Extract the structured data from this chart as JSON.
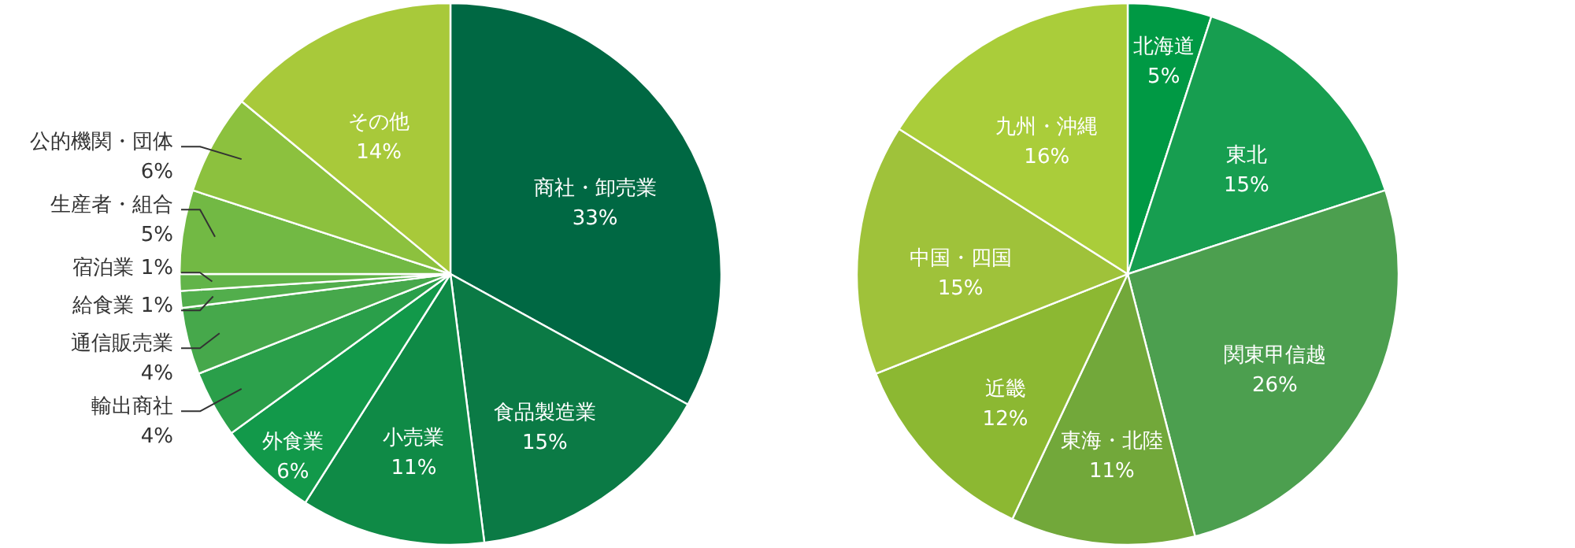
{
  "chart_data": [
    {
      "type": "pie",
      "categories": [
        "商社・卸売業",
        "食品製造業",
        "小売業",
        "外食業",
        "輸出商社",
        "通信販売業",
        "給食業",
        "宿泊業",
        "生産者・組合",
        "公的機関・団体",
        "その他"
      ],
      "values": [
        33,
        15,
        11,
        6,
        4,
        4,
        1,
        1,
        5,
        6,
        14
      ],
      "value_labels": [
        "33%",
        "15%",
        "11%",
        "6%",
        "4%",
        "4%",
        "1%",
        "1%",
        "5%",
        "6%",
        "14%"
      ],
      "colors": [
        "#006843",
        "#0b7a45",
        "#0f8a46",
        "#12994a",
        "#2a9f4a",
        "#46a84b",
        "#52ae4c",
        "#62b449",
        "#72b944",
        "#8cc13e",
        "#a8c93a"
      ]
    },
    {
      "type": "pie",
      "categories": [
        "北海道",
        "東北",
        "関東甲信越",
        "東海・北陸",
        "近畿",
        "中国・四国",
        "九州・沖縄"
      ],
      "values": [
        5,
        15,
        26,
        11,
        12,
        15,
        16
      ],
      "value_labels": [
        "5%",
        "15%",
        "26%",
        "11%",
        "12%",
        "15%",
        "16%"
      ],
      "colors": [
        "#009944",
        "#179e50",
        "#4c9f4f",
        "#72a83a",
        "#8cb832",
        "#9fc23a",
        "#aacd3a"
      ]
    }
  ]
}
